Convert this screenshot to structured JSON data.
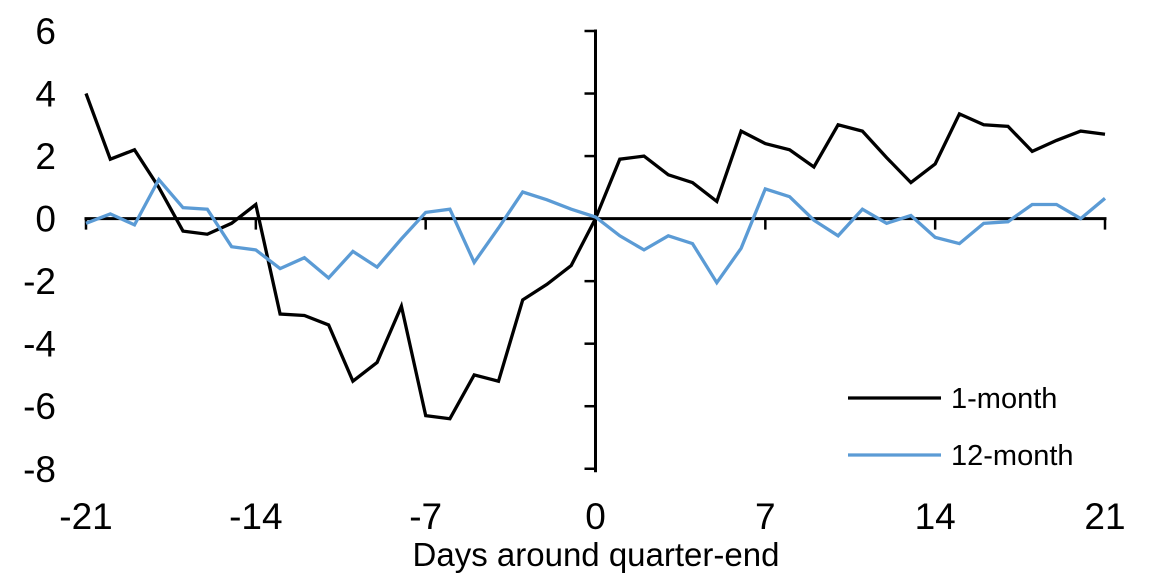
{
  "chart_data": {
    "type": "line",
    "title": "",
    "xlabel": "Days around quarter-end",
    "ylabel": "",
    "xlim": [
      -21,
      21
    ],
    "ylim": [
      -8,
      6
    ],
    "x_ticks": [
      -21,
      -14,
      -7,
      0,
      7,
      14,
      21
    ],
    "y_ticks": [
      6,
      4,
      2,
      0,
      -2,
      -4,
      -6,
      -8
    ],
    "grid": false,
    "legend_position": "inside-lower-right",
    "axis_color": "#000000",
    "background_color": "#ffffff",
    "x": [
      -21,
      -20,
      -19,
      -18,
      -17,
      -16,
      -15,
      -14,
      -13,
      -12,
      -11,
      -10,
      -9,
      -8,
      -7,
      -6,
      -5,
      -4,
      -3,
      -2,
      -1,
      0,
      1,
      2,
      3,
      4,
      5,
      6,
      7,
      8,
      9,
      10,
      11,
      12,
      13,
      14,
      15,
      16,
      17,
      18,
      19,
      20,
      21
    ],
    "series": [
      {
        "name": "1-month",
        "color": "#000000",
        "values": [
          4.0,
          1.9,
          2.2,
          1.0,
          -0.4,
          -0.5,
          -0.15,
          0.45,
          -3.05,
          -3.1,
          -3.4,
          -5.2,
          -4.6,
          -2.8,
          -6.3,
          -6.4,
          -5.0,
          -5.2,
          -2.6,
          -2.1,
          -1.5,
          0.0,
          1.9,
          2.0,
          1.4,
          1.15,
          0.55,
          2.8,
          2.4,
          2.2,
          1.65,
          3.0,
          2.8,
          1.95,
          1.15,
          1.75,
          3.35,
          3.0,
          2.95,
          2.15,
          2.5,
          2.8,
          2.7
        ]
      },
      {
        "name": "12-month",
        "color": "#5B9BD5",
        "values": [
          -0.15,
          0.15,
          -0.2,
          1.25,
          0.35,
          0.3,
          -0.9,
          -1.0,
          -1.6,
          -1.25,
          -1.9,
          -1.05,
          -1.55,
          -0.65,
          0.2,
          0.3,
          -1.4,
          -0.3,
          0.85,
          0.6,
          0.3,
          0.05,
          -0.55,
          -1.0,
          -0.55,
          -0.8,
          -2.05,
          -0.95,
          0.95,
          0.7,
          -0.05,
          -0.55,
          0.3,
          -0.15,
          0.1,
          -0.6,
          -0.8,
          -0.15,
          -0.1,
          0.45,
          0.45,
          0.0,
          0.65
        ]
      }
    ]
  }
}
